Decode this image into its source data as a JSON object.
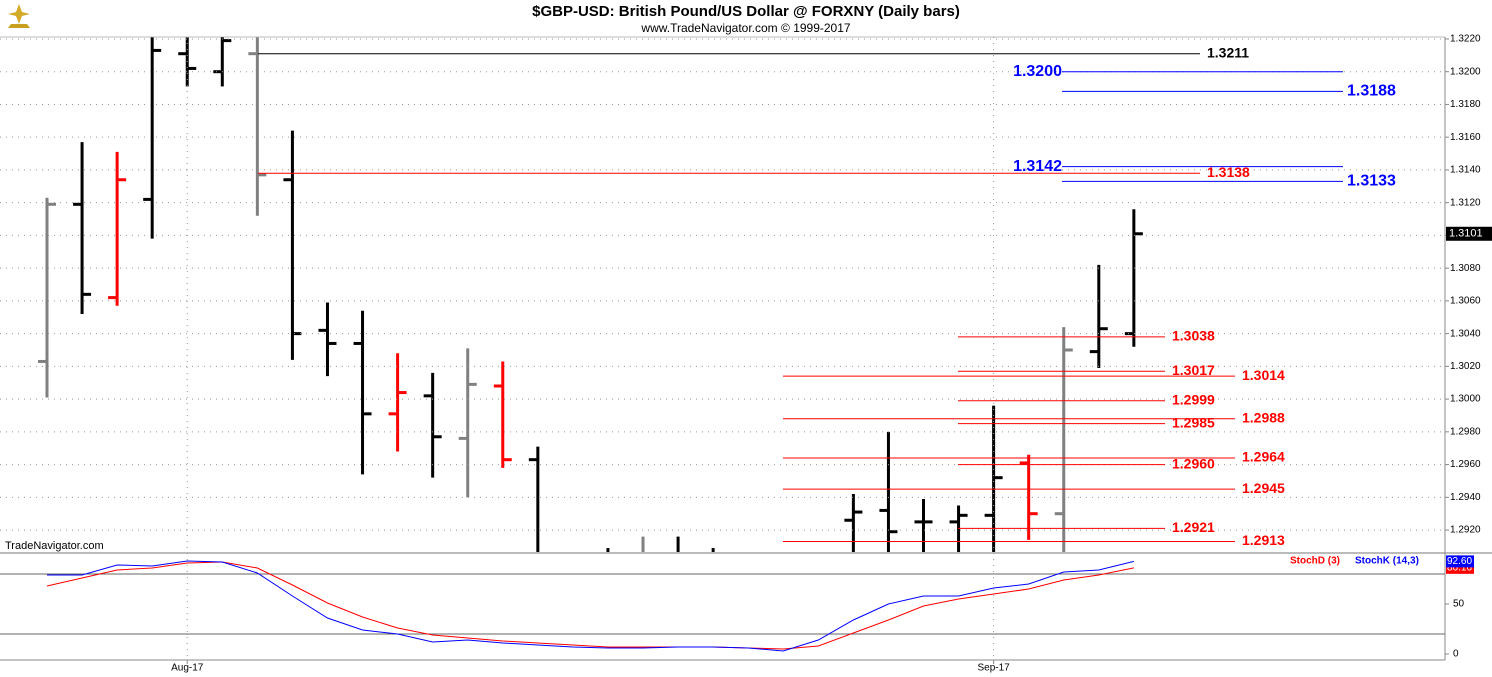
{
  "chart_data": {
    "type": "ohlc",
    "title": "$GBP-USD:  British Pound/US Dollar @ FORXNY  (Daily bars)",
    "subtitle": "www.TradeNavigator.com © 1999-2017",
    "watermark": "TradeNavigator.com",
    "categories": [
      null,
      null,
      null,
      null,
      "Aug-17",
      null,
      null,
      null,
      null,
      null,
      null,
      null,
      null,
      null,
      null,
      null,
      null,
      null,
      null,
      null,
      null,
      null,
      null,
      null,
      null,
      null,
      null,
      "Sep-17",
      null,
      null,
      null,
      null
    ],
    "open": [
      1.3023,
      1.3119,
      1.3062,
      1.3122,
      1.3211,
      1.32,
      1.3211,
      1.3134,
      1.3042,
      1.3034,
      1.2991,
      1.3002,
      1.2976,
      1.3008,
      1.2963,
      null,
      null,
      null,
      null,
      null,
      null,
      null,
      null,
      1.2926,
      1.2932,
      1.2925,
      1.2925,
      1.2929,
      1.2961,
      1.293,
      1.3029,
      1.304
    ],
    "high": [
      1.3123,
      1.3157,
      1.3151,
      1.3221,
      1.3221,
      1.3221,
      1.3221,
      1.3164,
      1.3059,
      1.3054,
      1.3028,
      1.3016,
      1.3031,
      1.3023,
      1.2971,
      null,
      1.2909,
      1.2916,
      1.2916,
      1.2909,
      null,
      null,
      null,
      1.2942,
      1.298,
      1.2939,
      1.2935,
      1.2996,
      1.2966,
      1.3044,
      1.3082,
      1.3116
    ],
    "low": [
      1.3001,
      1.3052,
      1.3057,
      1.3098,
      1.3191,
      1.3191,
      1.3112,
      1.3024,
      1.3014,
      1.2954,
      1.2968,
      1.2952,
      1.294,
      1.2958,
      1.2895,
      null,
      1.2895,
      1.2895,
      1.2895,
      1.2895,
      null,
      null,
      null,
      1.2895,
      1.2895,
      1.2895,
      1.2895,
      1.2895,
      1.2914,
      1.2895,
      1.3019,
      1.3032
    ],
    "close": [
      1.3119,
      1.3064,
      1.3134,
      1.3213,
      1.3202,
      1.3219,
      1.3137,
      1.304,
      1.3034,
      1.2991,
      1.3004,
      1.2977,
      1.3009,
      1.2963,
      null,
      null,
      null,
      null,
      null,
      null,
      null,
      null,
      null,
      1.2931,
      1.2919,
      1.2925,
      1.2929,
      1.2952,
      1.293,
      1.303,
      1.3043,
      1.3101
    ],
    "colors": [
      "#808080",
      "#000000",
      "#ff0000",
      "#000000",
      "#000000",
      "#000000",
      "#808080",
      "#000000",
      "#000000",
      "#000000",
      "#ff0000",
      "#000000",
      "#808080",
      "#ff0000",
      "#000000",
      "#000000",
      "#000000",
      "#808080",
      "#000000",
      "#000000",
      "#000000",
      "#000000",
      "#000000",
      "#000000",
      "#000000",
      "#000000",
      "#000000",
      "#000000",
      "#ff0000",
      "#808080",
      "#000000",
      "#000000"
    ],
    "ylim": [
      1.29066,
      1.32212
    ],
    "yticks": [
      {
        "value": 1.292,
        "label": "1.2920"
      },
      {
        "value": 1.294,
        "label": "1.2940"
      },
      {
        "value": 1.296,
        "label": "1.2960"
      },
      {
        "value": 1.298,
        "label": "1.2980"
      },
      {
        "value": 1.3,
        "label": "1.3000"
      },
      {
        "value": 1.302,
        "label": "1.3020"
      },
      {
        "value": 1.304,
        "label": "1.3040"
      },
      {
        "value": 1.306,
        "label": "1.3060"
      },
      {
        "value": 1.308,
        "label": "1.3080"
      },
      {
        "value": 1.31,
        "label": "1.3100"
      },
      {
        "value": 1.312,
        "label": "1.3120"
      },
      {
        "value": 1.314,
        "label": "1.3140"
      },
      {
        "value": 1.316,
        "label": "1.3160"
      },
      {
        "value": 1.318,
        "label": "1.3180"
      },
      {
        "value": 1.32,
        "label": "1.3200"
      },
      {
        "value": 1.322,
        "label": "1.3220"
      }
    ],
    "grid": true,
    "levels": [
      {
        "value": 1.3211,
        "color": "#000000"
      },
      {
        "value": 1.32,
        "label": "1.3200",
        "color": "#0000ff"
      },
      {
        "value": 1.3188,
        "color": "#0000ff"
      },
      {
        "value": 1.3142,
        "color": "#0000ff"
      },
      {
        "value": 1.3138,
        "color": "#ff0000"
      },
      {
        "value": 1.3133,
        "color": "#0000ff"
      },
      {
        "value": 1.3038,
        "color": "#ff0000"
      },
      {
        "value": 1.3017,
        "color": "#ff0000"
      },
      {
        "value": 1.3014,
        "color": "#ff0000"
      },
      {
        "value": 1.2999,
        "color": "#ff0000"
      },
      {
        "value": 1.2988,
        "color": "#ff0000"
      },
      {
        "value": 1.2985,
        "color": "#ff0000"
      },
      {
        "value": 1.2964,
        "color": "#ff0000"
      },
      {
        "value": 1.296,
        "label": "1.2960",
        "color": "#ff0000"
      },
      {
        "value": 1.2945,
        "color": "#ff0000"
      },
      {
        "value": 1.2921,
        "color": "#ff0000"
      },
      {
        "value": 1.2913,
        "color": "#ff0000"
      }
    ],
    "indicator": {
      "ylim": [
        0,
        100
      ],
      "yticks": [
        0,
        50
      ],
      "levels": [
        20,
        80
      ],
      "series": [
        {
          "name": "StochD (3)",
          "color": "#ff0000",
          "values": [
            68,
            76,
            84,
            86,
            91,
            92,
            86,
            69,
            51,
            37,
            26,
            19,
            16,
            13,
            11,
            9,
            7,
            7,
            7,
            7,
            6,
            5,
            8,
            21,
            34,
            48,
            55,
            60,
            65,
            74,
            79,
            86.16
          ]
        },
        {
          "name": "StochK (14,3)",
          "color": "#0000ff",
          "values": [
            79,
            79,
            89,
            88,
            93,
            92,
            81,
            58,
            36,
            24,
            20,
            12,
            14,
            11,
            9,
            7,
            6,
            6,
            7,
            7,
            6,
            3,
            14,
            34,
            50,
            58,
            58,
            66,
            70,
            82,
            84,
            92.6
          ],
          "last_label": "92.60"
        }
      ]
    }
  }
}
